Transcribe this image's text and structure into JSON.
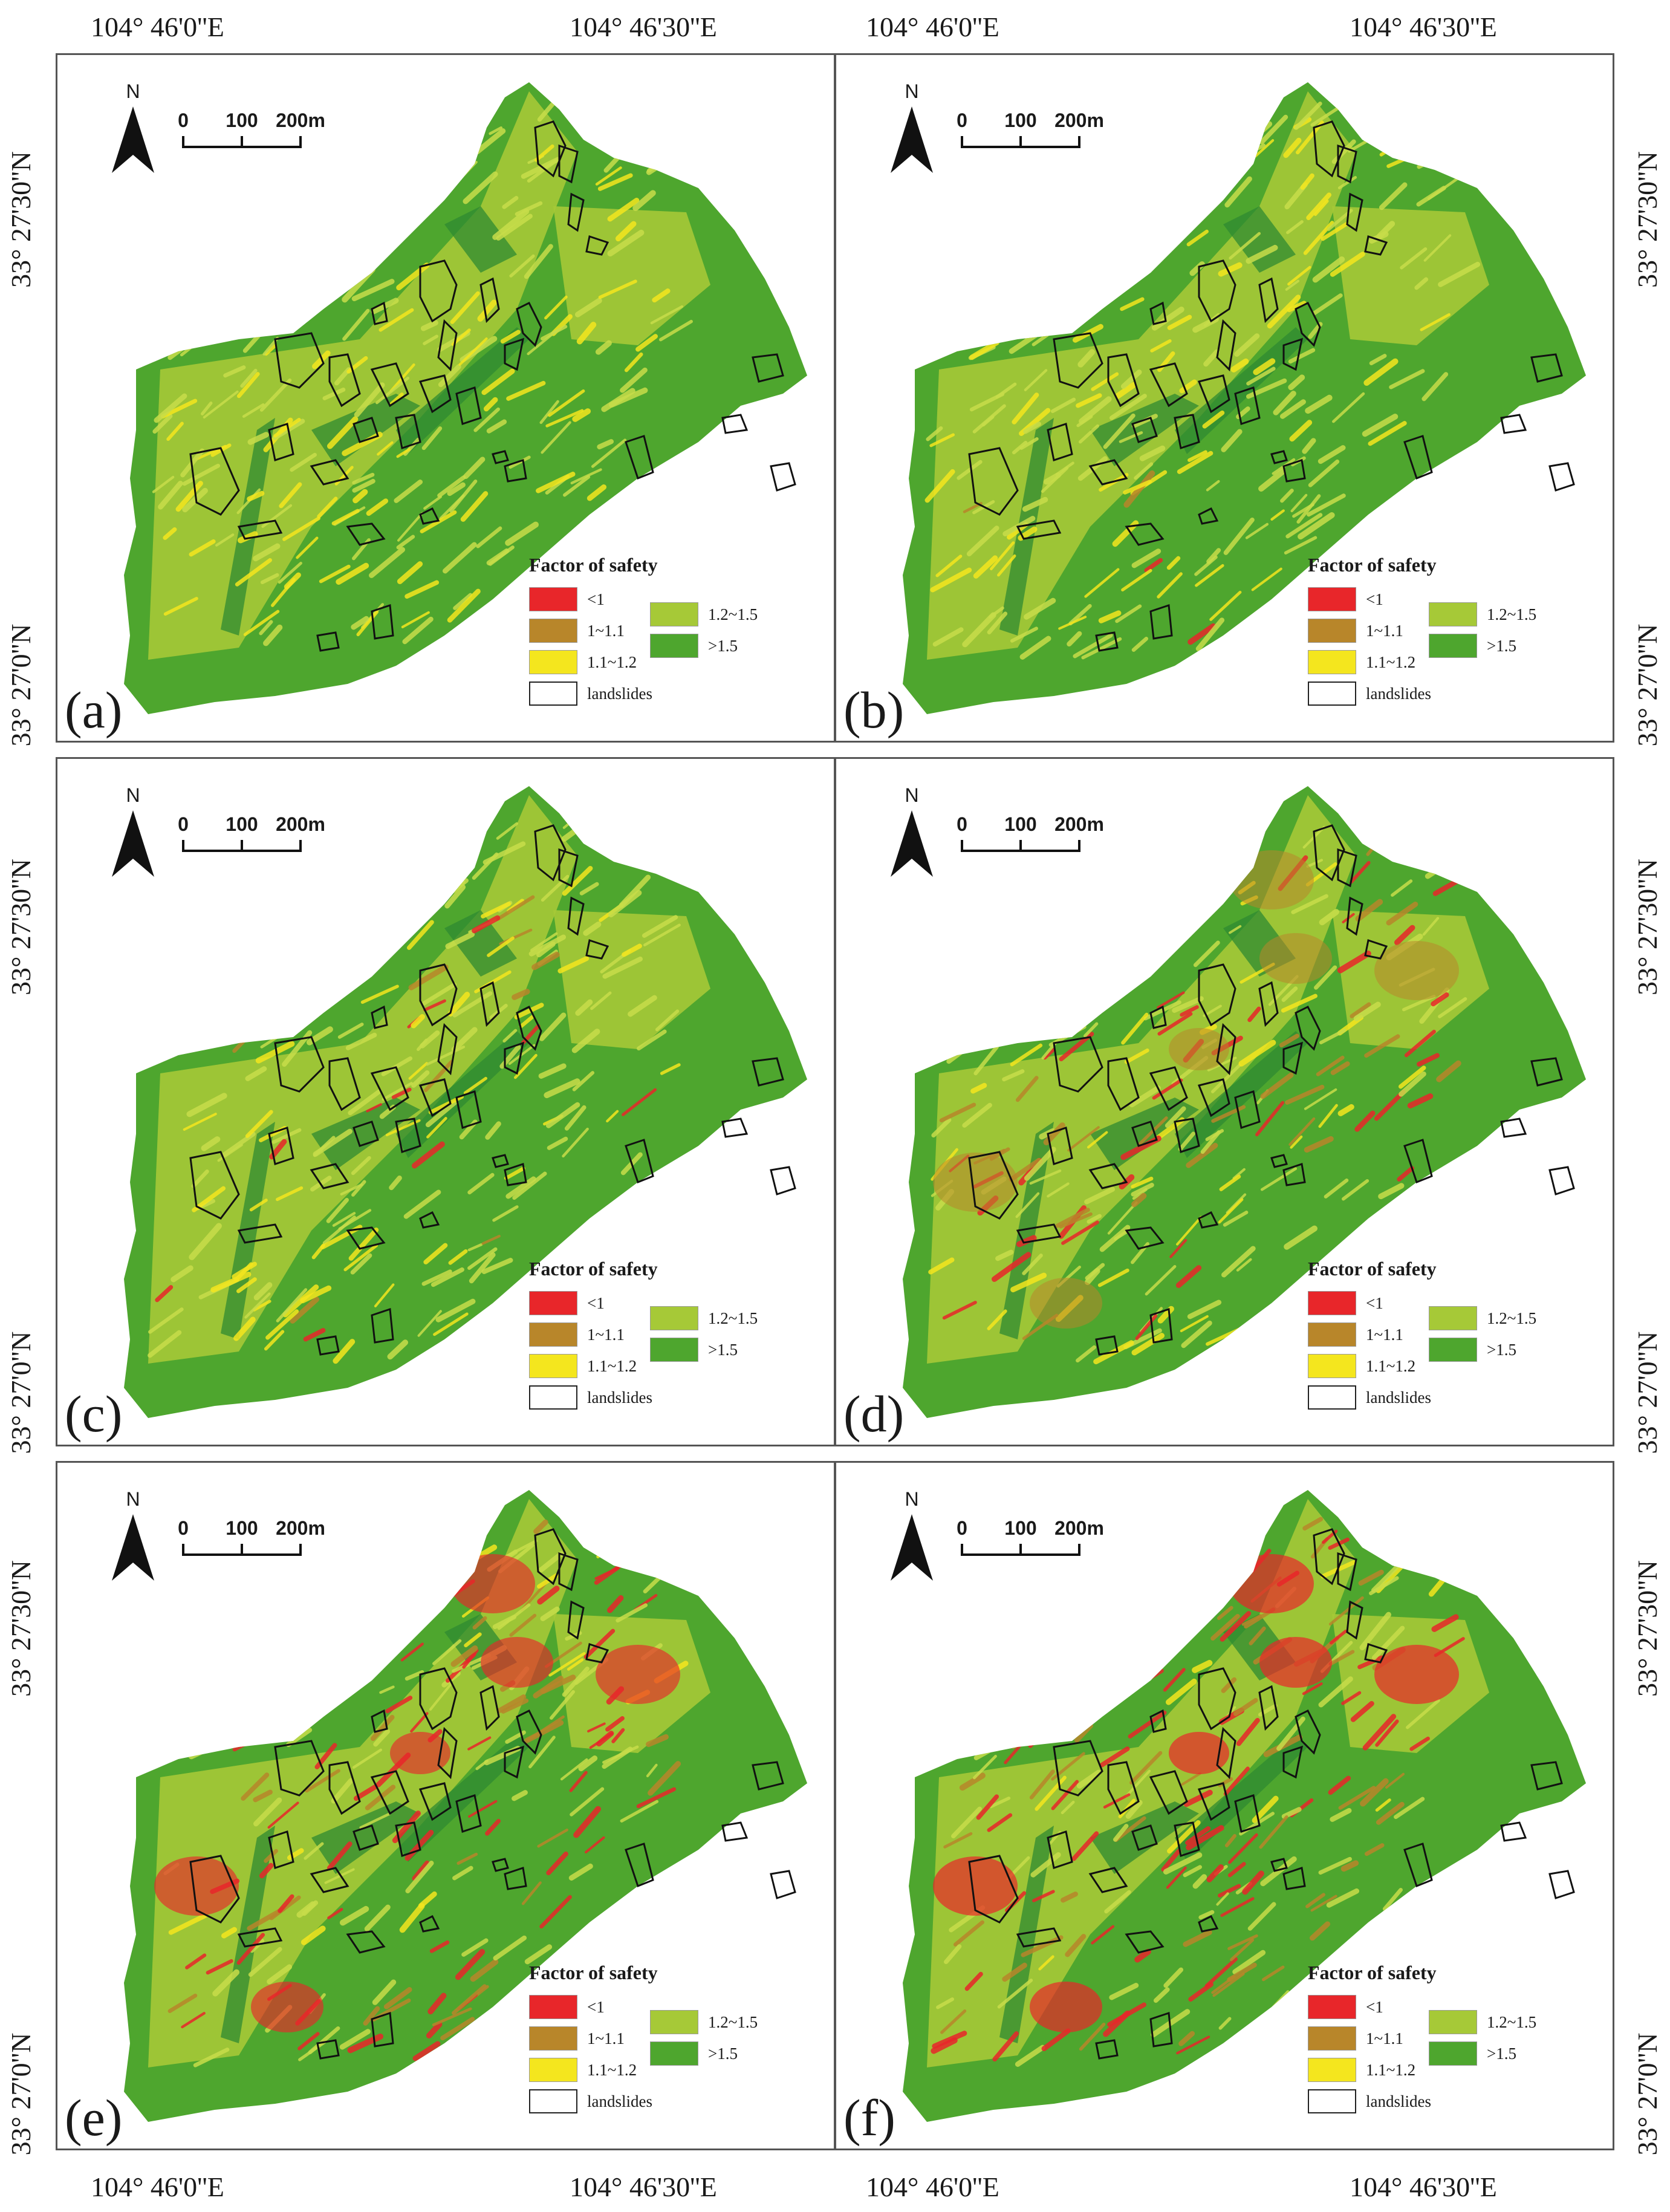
{
  "top_axis": {
    "left": "104°  46'0''E",
    "right": "104°  46'30''E"
  },
  "bottom_axis": {
    "left": "104°  46'0''E",
    "right": "104°  46'30''E"
  },
  "lat_labels": {
    "upper": "33°  27'30''N",
    "lower": "33°  27'0''N"
  },
  "north_arrow": {
    "letter": "N",
    "icon": "north-arrow-icon"
  },
  "scale_bar": {
    "labels": [
      "0",
      "100",
      "200m"
    ]
  },
  "legend": {
    "title": "Factor of safety",
    "items": [
      {
        "label": "<1",
        "color": "#e8262a"
      },
      {
        "label": "1~1.1",
        "color": "#b8862a"
      },
      {
        "label": "1.1~1.2",
        "color": "#f4e61e"
      },
      {
        "label": "landslides",
        "color": "#ffffff",
        "outline": true
      },
      {
        "label": "1.2~1.5",
        "color": "#a6c937"
      },
      {
        "label": ">1.5",
        "color": "#4ea62e"
      }
    ]
  },
  "panels": [
    {
      "letter": "(a)",
      "hazard": 0.0
    },
    {
      "letter": "(b)",
      "hazard": 0.08
    },
    {
      "letter": "(c)",
      "hazard": 0.15
    },
    {
      "letter": "(d)",
      "hazard": 0.55
    },
    {
      "letter": "(e)",
      "hazard": 0.85
    },
    {
      "letter": "(f)",
      "hazard": 1.0
    }
  ]
}
